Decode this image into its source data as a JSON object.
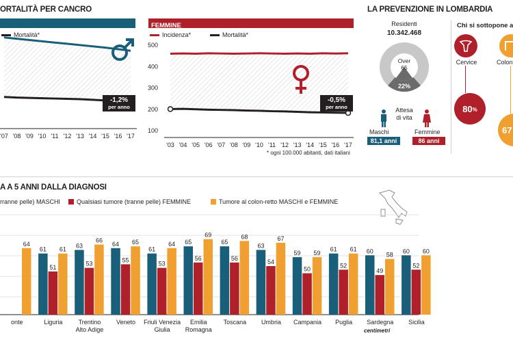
{
  "colors": {
    "teal": "#1a5f7a",
    "red": "#b0202a",
    "orange": "#f0a030",
    "gray": "#8c8c8c"
  },
  "top_left": {
    "title": "ORTALITÀ PER CANCRO",
    "legend_mortality": "Mortalità*",
    "change_pct": "-1,2%",
    "change_sub": "per anno",
    "icon": "male-symbol-icon"
  },
  "top_mid": {
    "header": "FEMMINE",
    "legend_incidence": "Incidenza*",
    "legend_mortality": "Mortalità*",
    "change_pct": "-0,5%",
    "change_sub": "per anno",
    "footnote": "* ogni 100.000 abitanti, dati italiani",
    "icon": "female-symbol-icon"
  },
  "top_right": {
    "title": "LA PREVENZIONE IN LOMBARDIA",
    "residents_label": "Residenti",
    "residents_value": "10.342.468",
    "donut_label": "Over\n65",
    "donut_pct": "22%",
    "life_label": "Attesa\ndi vita",
    "males_label": "Maschi",
    "males_value": "81,1 anni",
    "females_label": "Femmine",
    "females_value": "86 anni",
    "screening_title": "Chi si sottopone a",
    "cervice_label": "Cervice",
    "cervice_value": "80",
    "cervice_unit": "%",
    "colon_label": "Colon",
    "colon_value": "67"
  },
  "chart_data": [
    {
      "type": "line",
      "title": "ORTALITÀ PER CANCRO",
      "x": [
        "'07",
        "'08",
        "'09",
        "'10",
        "'11",
        "'12",
        "'13",
        "'14",
        "'15",
        "'16",
        "'17"
      ],
      "series": [
        {
          "name": "",
          "values": [
            438,
            434,
            430,
            426,
            422,
            418,
            414,
            410,
            406,
            401,
            396
          ]
        },
        {
          "name": "Mortalità*",
          "values": [
            250,
            248,
            247,
            246,
            245,
            244,
            243,
            241,
            239,
            236,
            233
          ]
        }
      ],
      "ylim": [
        150,
        470
      ]
    },
    {
      "type": "line",
      "title": "FEMMINE",
      "x": [
        "'03",
        "'04",
        "'05",
        "'06",
        "'07",
        "'08",
        "'09",
        "'10",
        "'11",
        "'12",
        "'13",
        "'14",
        "'15",
        "'16",
        "'17"
      ],
      "series": [
        {
          "name": "Incidenza*",
          "values": [
            460,
            461,
            460,
            462,
            461,
            460,
            461,
            462,
            461,
            460,
            461,
            460,
            462,
            461,
            462
          ]
        },
        {
          "name": "Mortalità*",
          "values": [
            201,
            202,
            200,
            198,
            197,
            196,
            194,
            193,
            191,
            190,
            188,
            186,
            185,
            184,
            183
          ]
        }
      ],
      "yticks": [
        100,
        200,
        300,
        400,
        500
      ],
      "ylim": [
        100,
        500
      ]
    },
    {
      "type": "bar",
      "title": "A A 5 ANNI DALLA DIAGNOSI",
      "legend": [
        "rranne pelle) MASCHI",
        "Qualsiasi tumore (tranne pelle) FEMMINE",
        "Tumore al colon-retto MASCHI e FEMMINE"
      ],
      "categories": [
        "onte",
        "Liguria",
        "Trentino\nAlto Adige",
        "Veneto",
        "Friuli Venezia\nGiulia",
        "Emilia\nRomagna",
        "Toscana",
        "Umbria",
        "Campania",
        "Puglia",
        "Sardegna",
        "Sicilia"
      ],
      "series": [
        {
          "name": "MASCHI",
          "values": [
            null,
            61,
            63,
            64,
            61,
            65,
            65,
            63,
            59,
            61,
            60,
            60
          ]
        },
        {
          "name": "FEMMINE",
          "values": [
            null,
            51,
            53,
            55,
            53,
            56,
            56,
            54,
            50,
            52,
            49,
            52
          ]
        },
        {
          "name": "Colon-retto",
          "values": [
            64,
            61,
            66,
            65,
            64,
            69,
            68,
            67,
            59,
            61,
            58,
            60
          ]
        }
      ],
      "ylim": [
        30,
        70
      ],
      "credit": "centimetri"
    }
  ]
}
